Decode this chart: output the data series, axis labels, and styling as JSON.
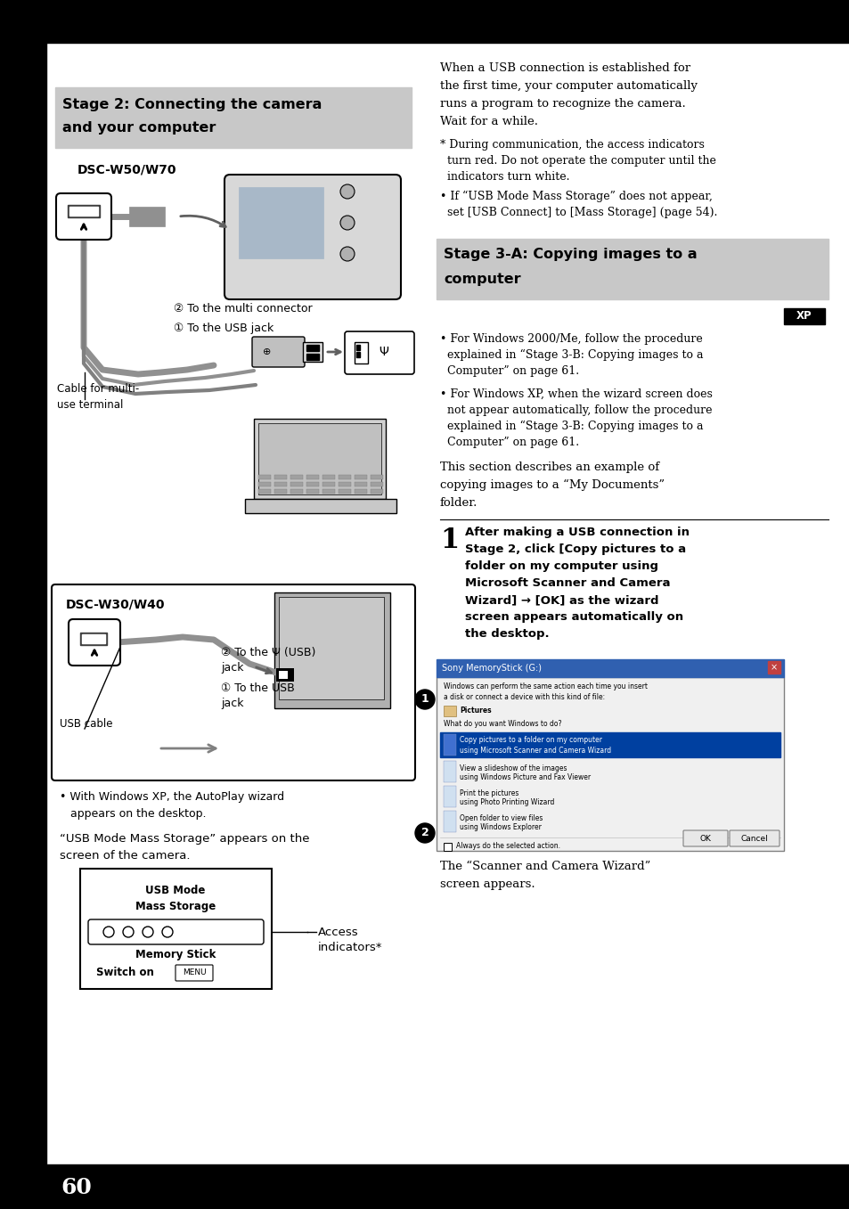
{
  "page_bg": "#ffffff",
  "header_bg": "#000000",
  "footer_bg": "#000000",
  "left_sidebar_bg": "#000000",
  "page_number": "60",
  "stage2_header_bg": "#c8c8c8",
  "stage2_title_line1": "Stage 2: Connecting the camera",
  "stage2_title_line2": "and your computer",
  "stage3_header_bg": "#c8c8c8",
  "stage3_title_line1": "Stage 3-A: Copying images to a",
  "stage3_title_line2": "computer",
  "dsc_w50_label": "DSC-W50/W70",
  "dsc_w30_label": "DSC-W30/W40",
  "annotation_2_multi": "② To the multi connector",
  "annotation_1_usb": "① To the USB jack",
  "cable_label": "Cable for multi-\nuse terminal",
  "usb_cable_label": "USB cable",
  "annotation_2_usb_jack": "② To the Ψ (USB)\njack",
  "annotation_1_usb_jack2": "① To the USB\njack",
  "autoplay_text": "• With Windows XP, the AutoPlay wizard\n   appears on the desktop.",
  "usb_mode_text": "“USB Mode Mass Storage” appears on the\nscreen of the camera.",
  "access_indicators_text": "Access\nindicators*",
  "usb_mode_box_title1": "USB Mode",
  "usb_mode_box_title2": "Mass Storage",
  "memory_stick_text": "Memory Stick",
  "switch_on_text": "Switch on",
  "right_para1_line1": "When a USB connection is established for",
  "right_para1_line2": "the first time, your computer automatically",
  "right_para1_line3": "runs a program to recognize the camera.",
  "right_para1_line4": "Wait for a while.",
  "right_note1_line1": "* During communication, the access indicators",
  "right_note1_line2": "  turn red. Do not operate the computer until the",
  "right_note1_line3": "  indicators turn white.",
  "right_bullet1_line1": "• If “USB Mode Mass Storage” does not appear,",
  "right_bullet1_line2": "  set [USB Connect] to [Mass Storage] (page 54).",
  "right_win_bullet1_line1": "• For Windows 2000/Me, follow the procedure",
  "right_win_bullet1_line2": "  explained in “Stage 3-B: Copying images to a",
  "right_win_bullet1_line3": "  Computer” on page 61.",
  "right_win_bullet2_line1": "• For Windows XP, when the wizard screen does",
  "right_win_bullet2_line2": "  not appear automatically, follow the procedure",
  "right_win_bullet2_line3": "  explained in “Stage 3-B: Copying images to a",
  "right_win_bullet2_line4": "  Computer” on page 61.",
  "section_para_line1": "This section describes an example of",
  "section_para_line2": "copying images to a “My Documents”",
  "section_para_line3": "folder.",
  "step1_num": "1",
  "step1_line1": "After making a USB connection in",
  "step1_line2": "Stage 2, click [Copy pictures to a",
  "step1_line3": "folder on my computer using",
  "step1_line4": "Microsoft Scanner and Camera",
  "step1_line5": "Wizard] → [OK] as the wizard",
  "step1_line6": "screen appears automatically on",
  "step1_line7": "the desktop.",
  "scanner_line1": "The “Scanner and Camera Wizard”",
  "scanner_line2": "screen appears.",
  "xp_badge": "XP",
  "dialog_title": "Sony MemoryStick (G:)",
  "dialog_line1": "Windows can perform the same action each time you insert",
  "dialog_line2": "a disk or connect a device with this kind of file:",
  "dialog_label": "Pictures",
  "dialog_q": "What do you want Windows to do?",
  "dialog_sel1": "Copy pictures to a folder on my computer",
  "dialog_sel2": "using Microsoft Scanner and Camera Wizard",
  "dialog_opt1a": "View a slideshow of the images",
  "dialog_opt1b": "using Windows Picture and Fax Viewer",
  "dialog_opt2a": "Print the pictures",
  "dialog_opt2b": "using Photo Printing Wizard",
  "dialog_opt3a": "Open folder to view files",
  "dialog_opt3b": "using Windows Explorer",
  "dialog_check": "Always do the selected action.",
  "dialog_ok": "OK",
  "dialog_cancel": "Cancel"
}
